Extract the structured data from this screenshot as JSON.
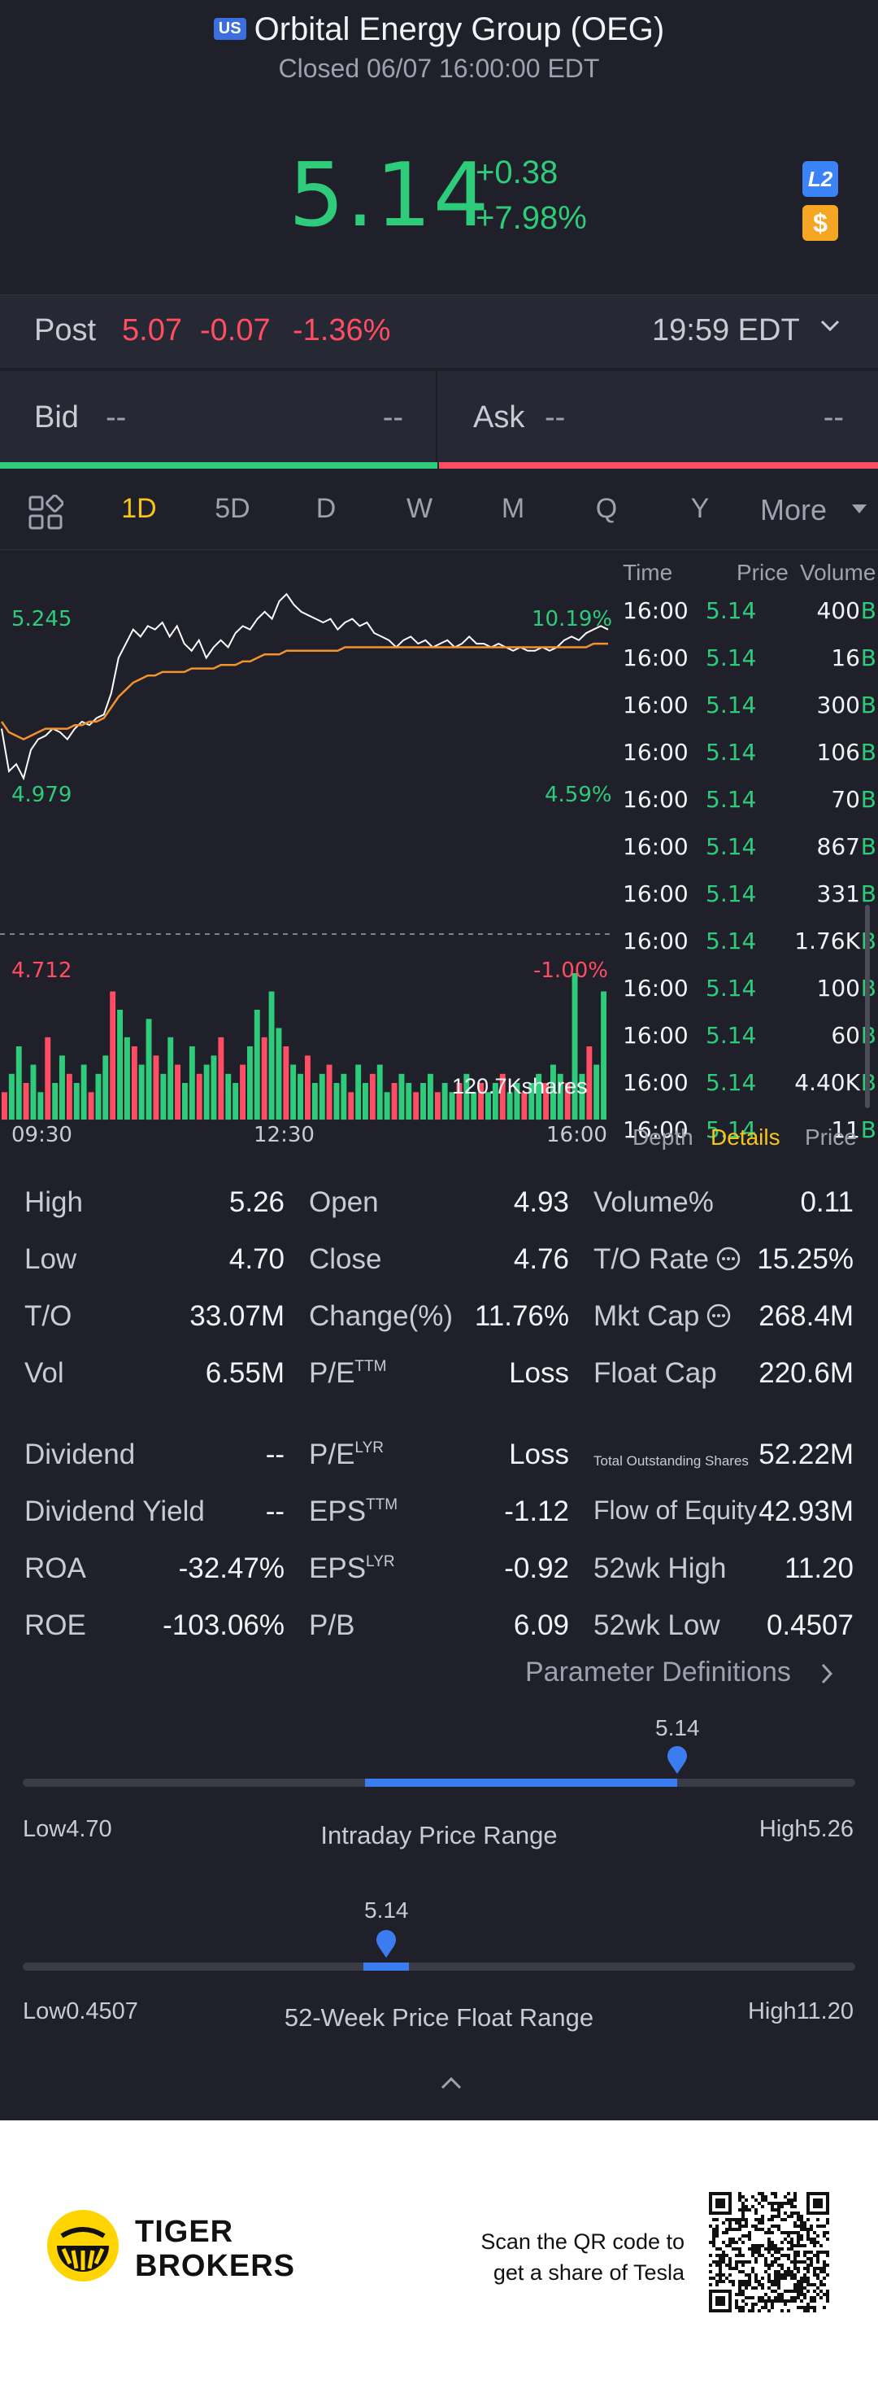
{
  "header": {
    "market_badge": "US",
    "title": "Orbital Energy Group (OEG)",
    "status": "Closed 06/07 16:00:00 EDT",
    "price": "5.14",
    "change": "+0.38",
    "change_pct": "+7.98%",
    "badge_l2": "L2",
    "badge_dollar": "$",
    "colors": {
      "up": "#2ecc7a",
      "down": "#ff4d63",
      "accent": "#f5c518",
      "background": "#1f2029"
    }
  },
  "post": {
    "label": "Post",
    "price": "5.07",
    "change": "-0.07",
    "change_pct": "-1.36%",
    "time": "19:59 EDT",
    "expand_icon": "chevron-down-icon"
  },
  "bid_ask": {
    "bid_label": "Bid",
    "bid_price": "--",
    "bid_size": "--",
    "ask_label": "Ask",
    "ask_price": "--",
    "ask_size": "--"
  },
  "period_tabs": {
    "items": [
      "1D",
      "5D",
      "D",
      "W",
      "M",
      "Q",
      "Y"
    ],
    "active": "1D",
    "more": "More"
  },
  "chart": {
    "labels": {
      "high_price": "5.245",
      "high_pct": "10.19%",
      "mid_price": "4.979",
      "mid_pct": "4.59%",
      "low_price": "4.712",
      "low_pct": "-1.00%",
      "volume": "120.7Kshares"
    },
    "x_ticks": [
      "09:30",
      "12:30",
      "16:00"
    ]
  },
  "chart_data": {
    "type": "line",
    "series": [
      {
        "values": [
          4.86,
          4.74,
          4.76,
          4.72,
          4.8,
          4.83,
          4.84,
          4.86,
          4.85,
          4.83,
          4.86,
          4.88,
          4.87,
          4.89,
          4.9,
          4.96,
          5.06,
          5.1,
          5.14,
          5.12,
          5.15,
          5.14,
          5.16,
          5.12,
          5.15,
          5.1,
          5.08,
          5.11,
          5.06,
          5.09,
          5.11,
          5.09,
          5.13,
          5.15,
          5.14,
          5.17,
          5.19,
          5.17,
          5.22,
          5.24,
          5.21,
          5.19,
          5.18,
          5.17,
          5.16,
          5.17,
          5.14,
          5.16,
          5.17,
          5.15,
          5.16,
          5.13,
          5.12,
          5.11,
          5.09,
          5.11,
          5.12,
          5.1,
          5.11,
          5.09,
          5.1,
          5.11,
          5.09,
          5.1,
          5.12,
          5.1,
          5.1,
          5.09,
          5.1,
          5.09,
          5.08,
          5.09,
          5.08,
          5.08,
          5.09,
          5.08,
          5.09,
          5.11,
          5.12,
          5.11,
          5.13,
          5.14,
          5.15,
          5.14
        ]
      },
      {
        "values": [
          4.88,
          4.85,
          4.84,
          4.83,
          4.84,
          4.85,
          4.86,
          4.86,
          4.86,
          4.86,
          4.87,
          4.87,
          4.88,
          4.88,
          4.89,
          4.92,
          4.95,
          4.97,
          4.99,
          5.0,
          5.01,
          5.01,
          5.02,
          5.02,
          5.02,
          5.02,
          5.03,
          5.03,
          5.03,
          5.03,
          5.04,
          5.04,
          5.04,
          5.05,
          5.05,
          5.06,
          5.07,
          5.07,
          5.07,
          5.08,
          5.08,
          5.08,
          5.08,
          5.08,
          5.08,
          5.08,
          5.08,
          5.09,
          5.09,
          5.09,
          5.09,
          5.09,
          5.09,
          5.09,
          5.09,
          5.09,
          5.09,
          5.09,
          5.09,
          5.09,
          5.09,
          5.09,
          5.09,
          5.09,
          5.09,
          5.09,
          5.09,
          5.09,
          5.09,
          5.09,
          5.09,
          5.09,
          5.09,
          5.09,
          5.09,
          5.09,
          5.09,
          5.09,
          5.09,
          5.09,
          5.09,
          5.1,
          5.1,
          5.1
        ]
      }
    ],
    "volume": [
      3,
      5,
      8,
      4,
      6,
      3,
      9,
      4,
      7,
      5,
      4,
      6,
      3,
      5,
      7,
      14,
      12,
      9,
      8,
      6,
      11,
      7,
      5,
      9,
      6,
      4,
      8,
      5,
      6,
      7,
      9,
      5,
      4,
      6,
      8,
      12,
      9,
      14,
      10,
      8,
      6,
      5,
      7,
      4,
      5,
      6,
      4,
      5,
      3,
      6,
      4,
      5,
      6,
      3,
      4,
      5,
      4,
      3,
      4,
      5,
      3,
      4,
      3,
      4,
      5,
      3,
      4,
      3,
      4,
      5,
      3,
      4,
      3,
      4,
      5,
      4,
      6,
      5,
      4,
      16,
      5,
      8,
      6,
      14
    ],
    "ylim": [
      4.712,
      5.245
    ],
    "prev_close": 4.76,
    "xlabels": [
      "09:30",
      "12:30",
      "16:00"
    ],
    "grid": false
  },
  "time_sales": {
    "headers": {
      "time": "Time",
      "price": "Price",
      "volume": "Volume"
    },
    "rows": [
      {
        "time": "16:00",
        "price": "5.14",
        "volume": "400",
        "side": "B"
      },
      {
        "time": "16:00",
        "price": "5.14",
        "volume": "16",
        "side": "B"
      },
      {
        "time": "16:00",
        "price": "5.14",
        "volume": "300",
        "side": "B"
      },
      {
        "time": "16:00",
        "price": "5.14",
        "volume": "106",
        "side": "B"
      },
      {
        "time": "16:00",
        "price": "5.14",
        "volume": "70",
        "side": "B"
      },
      {
        "time": "16:00",
        "price": "5.14",
        "volume": "867",
        "side": "B"
      },
      {
        "time": "16:00",
        "price": "5.14",
        "volume": "331",
        "side": "B"
      },
      {
        "time": "16:00",
        "price": "5.14",
        "volume": "1.76K",
        "side": "B"
      },
      {
        "time": "16:00",
        "price": "5.14",
        "volume": "100",
        "side": "B"
      },
      {
        "time": "16:00",
        "price": "5.14",
        "volume": "60",
        "side": "B"
      },
      {
        "time": "16:00",
        "price": "5.14",
        "volume": "4.40K",
        "side": "B"
      },
      {
        "time": "16:00",
        "price": "5.14",
        "volume": "11",
        "side": "B"
      }
    ],
    "tabs": [
      "Depth",
      "Details",
      "Price"
    ],
    "active_tab": "Details"
  },
  "stats": {
    "high_label": "High",
    "high": "5.26",
    "low_label": "Low",
    "low": "4.70",
    "to_label": "T/O",
    "to": "33.07M",
    "vol_label": "Vol",
    "vol": "6.55M",
    "open_label": "Open",
    "open": "4.93",
    "close_label": "Close",
    "close": "4.76",
    "change_label": "Change(%)",
    "change": "11.76%",
    "pe_label": "P/E",
    "pe_sup": "TTM",
    "pe": "Loss",
    "volpct_label": "Volume%",
    "volpct": "0.11",
    "torate_label": "T/O Rate",
    "torate": "15.25%",
    "mktcap_label": "Mkt Cap",
    "mktcap": "268.4M",
    "floatcap_label": "Float Cap",
    "floatcap": "220.6M",
    "dividend_label": "Dividend",
    "dividend": "--",
    "divyield_label": "Dividend Yield",
    "divyield": "--",
    "roa_label": "ROA",
    "roa": "-32.47%",
    "roe_label": "ROE",
    "roe": "-103.06%",
    "pelyr_label": "P/E",
    "pelyr_sup": "LYR",
    "pelyr": "Loss",
    "eps_label": "EPS",
    "eps_sup": "TTM",
    "eps": "-1.12",
    "epslyr_label": "EPS",
    "epslyr_sup": "LYR",
    "epslyr": "-0.92",
    "pb_label": "P/B",
    "pb": "6.09",
    "tos_label": "Total Outstanding Shares",
    "tos": "52.22M",
    "foe_label": "Flow of Equity",
    "foe": "42.93M",
    "wkhigh_label": "52wk High",
    "wkhigh": "11.20",
    "wklow_label": "52wk Low",
    "wklow": "0.4507",
    "param_link": "Parameter Definitions"
  },
  "intraday_range": {
    "current": "5.14",
    "low_label": "Low4.70",
    "high_label": "High5.26",
    "title": "Intraday Price Range",
    "low": 4.7,
    "high": 5.26,
    "open": 4.93,
    "value": 5.14
  },
  "week52_range": {
    "current": "5.14",
    "low_label": "Low0.4507",
    "high_label": "High11.20",
    "title": "52-Week Price Float Range",
    "low": 0.4507,
    "high": 11.2,
    "value": 5.14
  },
  "footer": {
    "brand_line1": "TIGER",
    "brand_line2": "BROKERS",
    "scan_line1": "Scan the QR code to",
    "scan_line2": "get a share of Tesla"
  }
}
